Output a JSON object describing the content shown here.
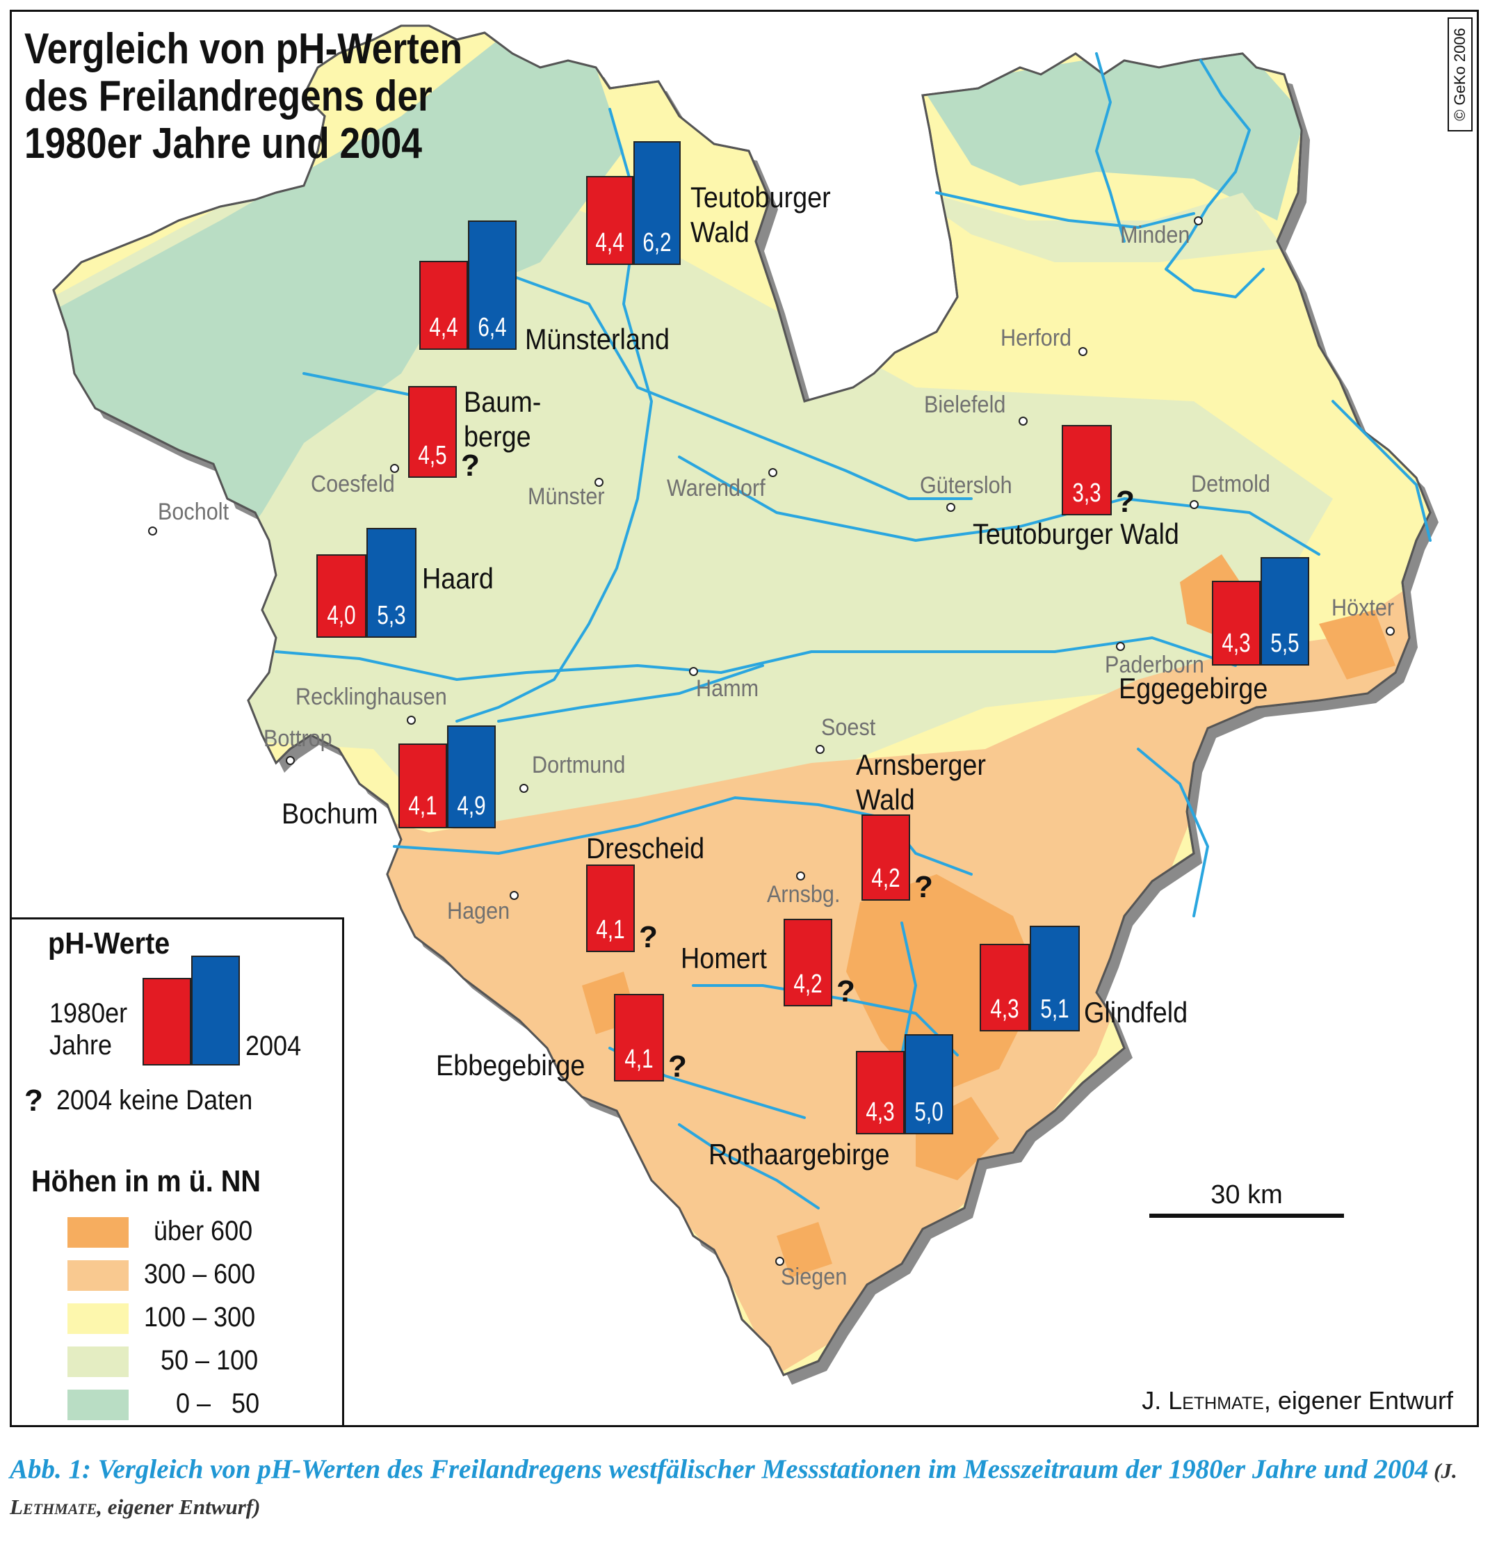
{
  "title": {
    "line1": "Vergleich von pH-Werten",
    "line2": "des Freilandregens der",
    "line3": "1980er Jahre und 2004"
  },
  "copyright": "© GeKo 2006",
  "colors": {
    "red_1980s": "#e31b23",
    "blue_2004": "#0b5cad",
    "river": "#2aa6df",
    "elev_over_600": "#f6ad5f",
    "elev_300_600": "#f9c990",
    "elev_100_300": "#fdf7ad",
    "elev_50_100": "#e4edc2",
    "elev_0_50": "#b9ddc4"
  },
  "cities": [
    {
      "id": "minden",
      "name": "Minden"
    },
    {
      "id": "herford",
      "name": "Herford"
    },
    {
      "id": "bielefeld",
      "name": "Bielefeld"
    },
    {
      "id": "guetersloh",
      "name": "Gütersloh"
    },
    {
      "id": "detmold",
      "name": "Detmold"
    },
    {
      "id": "hoexter",
      "name": "Höxter"
    },
    {
      "id": "paderborn",
      "name": "Paderborn"
    },
    {
      "id": "warendorf",
      "name": "Warendorf"
    },
    {
      "id": "muenster",
      "name": "Münster"
    },
    {
      "id": "coesfeld",
      "name": "Coesfeld"
    },
    {
      "id": "bocholt",
      "name": "Bocholt"
    },
    {
      "id": "recklinghausen",
      "name": "Recklinghausen"
    },
    {
      "id": "bottrop",
      "name": "Bottrop"
    },
    {
      "id": "hamm",
      "name": "Hamm"
    },
    {
      "id": "soest",
      "name": "Soest"
    },
    {
      "id": "dortmund",
      "name": "Dortmund"
    },
    {
      "id": "hagen",
      "name": "Hagen"
    },
    {
      "id": "arnsberg",
      "name": "Arnsbg."
    },
    {
      "id": "siegen",
      "name": "Siegen"
    }
  ],
  "stations": [
    {
      "id": "teutoburger-wald-north",
      "label_lines": [
        "Teutoburger",
        "Wald"
      ],
      "ph_1980s": "4,4",
      "ph_2004": "6,2",
      "no_data_2004": false
    },
    {
      "id": "muensterland",
      "label_lines": [
        "Münsterland"
      ],
      "ph_1980s": "4,4",
      "ph_2004": "6,4",
      "no_data_2004": false
    },
    {
      "id": "baumberge",
      "label_lines": [
        "Baum-",
        "berge"
      ],
      "ph_1980s": "4,5",
      "ph_2004": null,
      "no_data_2004": true
    },
    {
      "id": "haard",
      "label_lines": [
        "Haard"
      ],
      "ph_1980s": "4,0",
      "ph_2004": "5,3",
      "no_data_2004": false
    },
    {
      "id": "bochum",
      "label_lines": [
        "Bochum"
      ],
      "ph_1980s": "4,1",
      "ph_2004": "4,9",
      "no_data_2004": false
    },
    {
      "id": "teutoburger-wald-south",
      "label_lines": [
        "Teutoburger Wald"
      ],
      "ph_1980s": "3,3",
      "ph_2004": null,
      "no_data_2004": true
    },
    {
      "id": "eggegebirge",
      "label_lines": [
        "Eggegebirge"
      ],
      "ph_1980s": "4,3",
      "ph_2004": "5,5",
      "no_data_2004": false
    },
    {
      "id": "arnsberger-wald",
      "label_lines": [
        "Arnsberger",
        "Wald"
      ],
      "ph_1980s": "4,2",
      "ph_2004": null,
      "no_data_2004": true
    },
    {
      "id": "drescheid",
      "label_lines": [
        "Drescheid"
      ],
      "ph_1980s": "4,1",
      "ph_2004": null,
      "no_data_2004": true
    },
    {
      "id": "homert",
      "label_lines": [
        "Homert"
      ],
      "ph_1980s": "4,2",
      "ph_2004": null,
      "no_data_2004": true
    },
    {
      "id": "glindfeld",
      "label_lines": [
        "Glindfeld"
      ],
      "ph_1980s": "4,3",
      "ph_2004": "5,1",
      "no_data_2004": false
    },
    {
      "id": "ebbegebirge",
      "label_lines": [
        "Ebbegebirge"
      ],
      "ph_1980s": "4,1",
      "ph_2004": null,
      "no_data_2004": true
    },
    {
      "id": "rothaargebirge",
      "label_lines": [
        "Rothaargebirge"
      ],
      "ph_1980s": "4,3",
      "ph_2004": "5,0",
      "no_data_2004": false
    }
  ],
  "no_data_marker": "?",
  "legend": {
    "ph_heading": "pH-Werte",
    "label_1980s_line1": "1980er",
    "label_1980s_line2": "Jahre",
    "label_2004": "2004",
    "no_data_label": "2004 keine Daten",
    "elev_heading": "Höhen in m ü. NN",
    "elevation_classes": [
      {
        "label": "über 600",
        "color": "#f6ad5f"
      },
      {
        "label": "300 – 600",
        "color": "#f9c990"
      },
      {
        "label": "100 – 300",
        "color": "#fdf7ad"
      },
      {
        "label": "50 – 100",
        "color": "#e4edc2"
      },
      {
        "label": "0 –   50",
        "color": "#b9ddc4"
      }
    ]
  },
  "scale_bar": {
    "label": "30 km"
  },
  "author": {
    "prefix": "J. ",
    "name": "Lethmate",
    "suffix": ", eigener Entwurf"
  },
  "caption": {
    "text": "Abb. 1: Vergleich von pH-Werten des Freilandregens westfälischer Messstationen im Messzeitraum der 1980er Jahre und 2004",
    "source_open": " (J. ",
    "source_name": "Lethmate",
    "source_close": ", eigener Entwurf)"
  }
}
